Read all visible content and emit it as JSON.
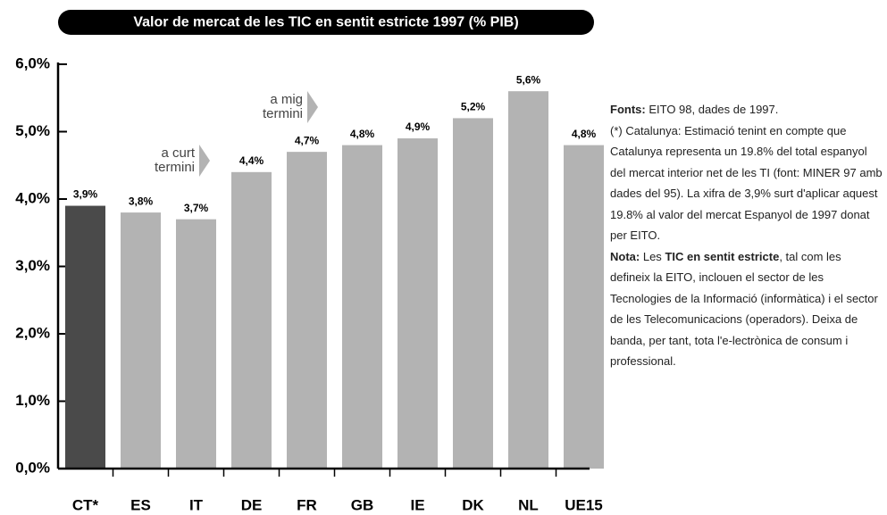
{
  "chart_data": {
    "type": "bar",
    "title": "Valor de mercat de les TIC en sentit estricte 1997 (% PIB)",
    "categories": [
      "CT*",
      "ES",
      "IT",
      "DE",
      "FR",
      "GB",
      "IE",
      "DK",
      "NL",
      "UE15"
    ],
    "values": [
      3.9,
      3.8,
      3.7,
      4.4,
      4.7,
      4.8,
      4.9,
      5.2,
      5.6,
      4.8
    ],
    "value_labels": [
      "3,9%",
      "3,8%",
      "3,7%",
      "4,4%",
      "4,7%",
      "4,8%",
      "4,9%",
      "5,2%",
      "5,6%",
      "4,8%"
    ],
    "colors": [
      "#4a4a4a",
      "#b3b3b3",
      "#b3b3b3",
      "#b3b3b3",
      "#b3b3b3",
      "#b3b3b3",
      "#b3b3b3",
      "#b3b3b3",
      "#b3b3b3",
      "#b3b3b3"
    ],
    "ylim": [
      0,
      6
    ],
    "yticks": [
      {
        "value": 0,
        "label": "0,0%"
      },
      {
        "value": 1,
        "label": "1,0%"
      },
      {
        "value": 2,
        "label": "2,0%"
      },
      {
        "value": 3,
        "label": "3,0%"
      },
      {
        "value": 4,
        "label": "4,0%"
      },
      {
        "value": 5,
        "label": "5,0%"
      },
      {
        "value": 6,
        "label": "6,0%"
      }
    ],
    "annotations": [
      [
        "a curt",
        "termini"
      ],
      [
        "a mig",
        "termini"
      ]
    ]
  },
  "notes": {
    "fonts_label": "Fonts:",
    "fonts_text": "EITO 98, dades de 1997.",
    "catalunya": "(*) Catalunya: Estimació tenint en compte que Catalunya representa un 19.8% del total espanyol del mercat interior net de les TI (font: MINER 97 amb dades del 95). La xifra de 3,9% surt d'aplicar aquest 19.8% al valor del mercat Espanyol de 1997 donat per EITO.",
    "nota_label": "Nota:",
    "nota_text1": "Les",
    "nota_bold": "TIC en sentit estricte",
    "nota_text2": ", tal com les defineix la EITO, inclouen el sector de les Tecnologies de la Informació (informàtica) i el sector de les Telecomunicacions (operadors). Deixa de banda, per tant, tota l'e-lectrònica de consum i professional."
  }
}
